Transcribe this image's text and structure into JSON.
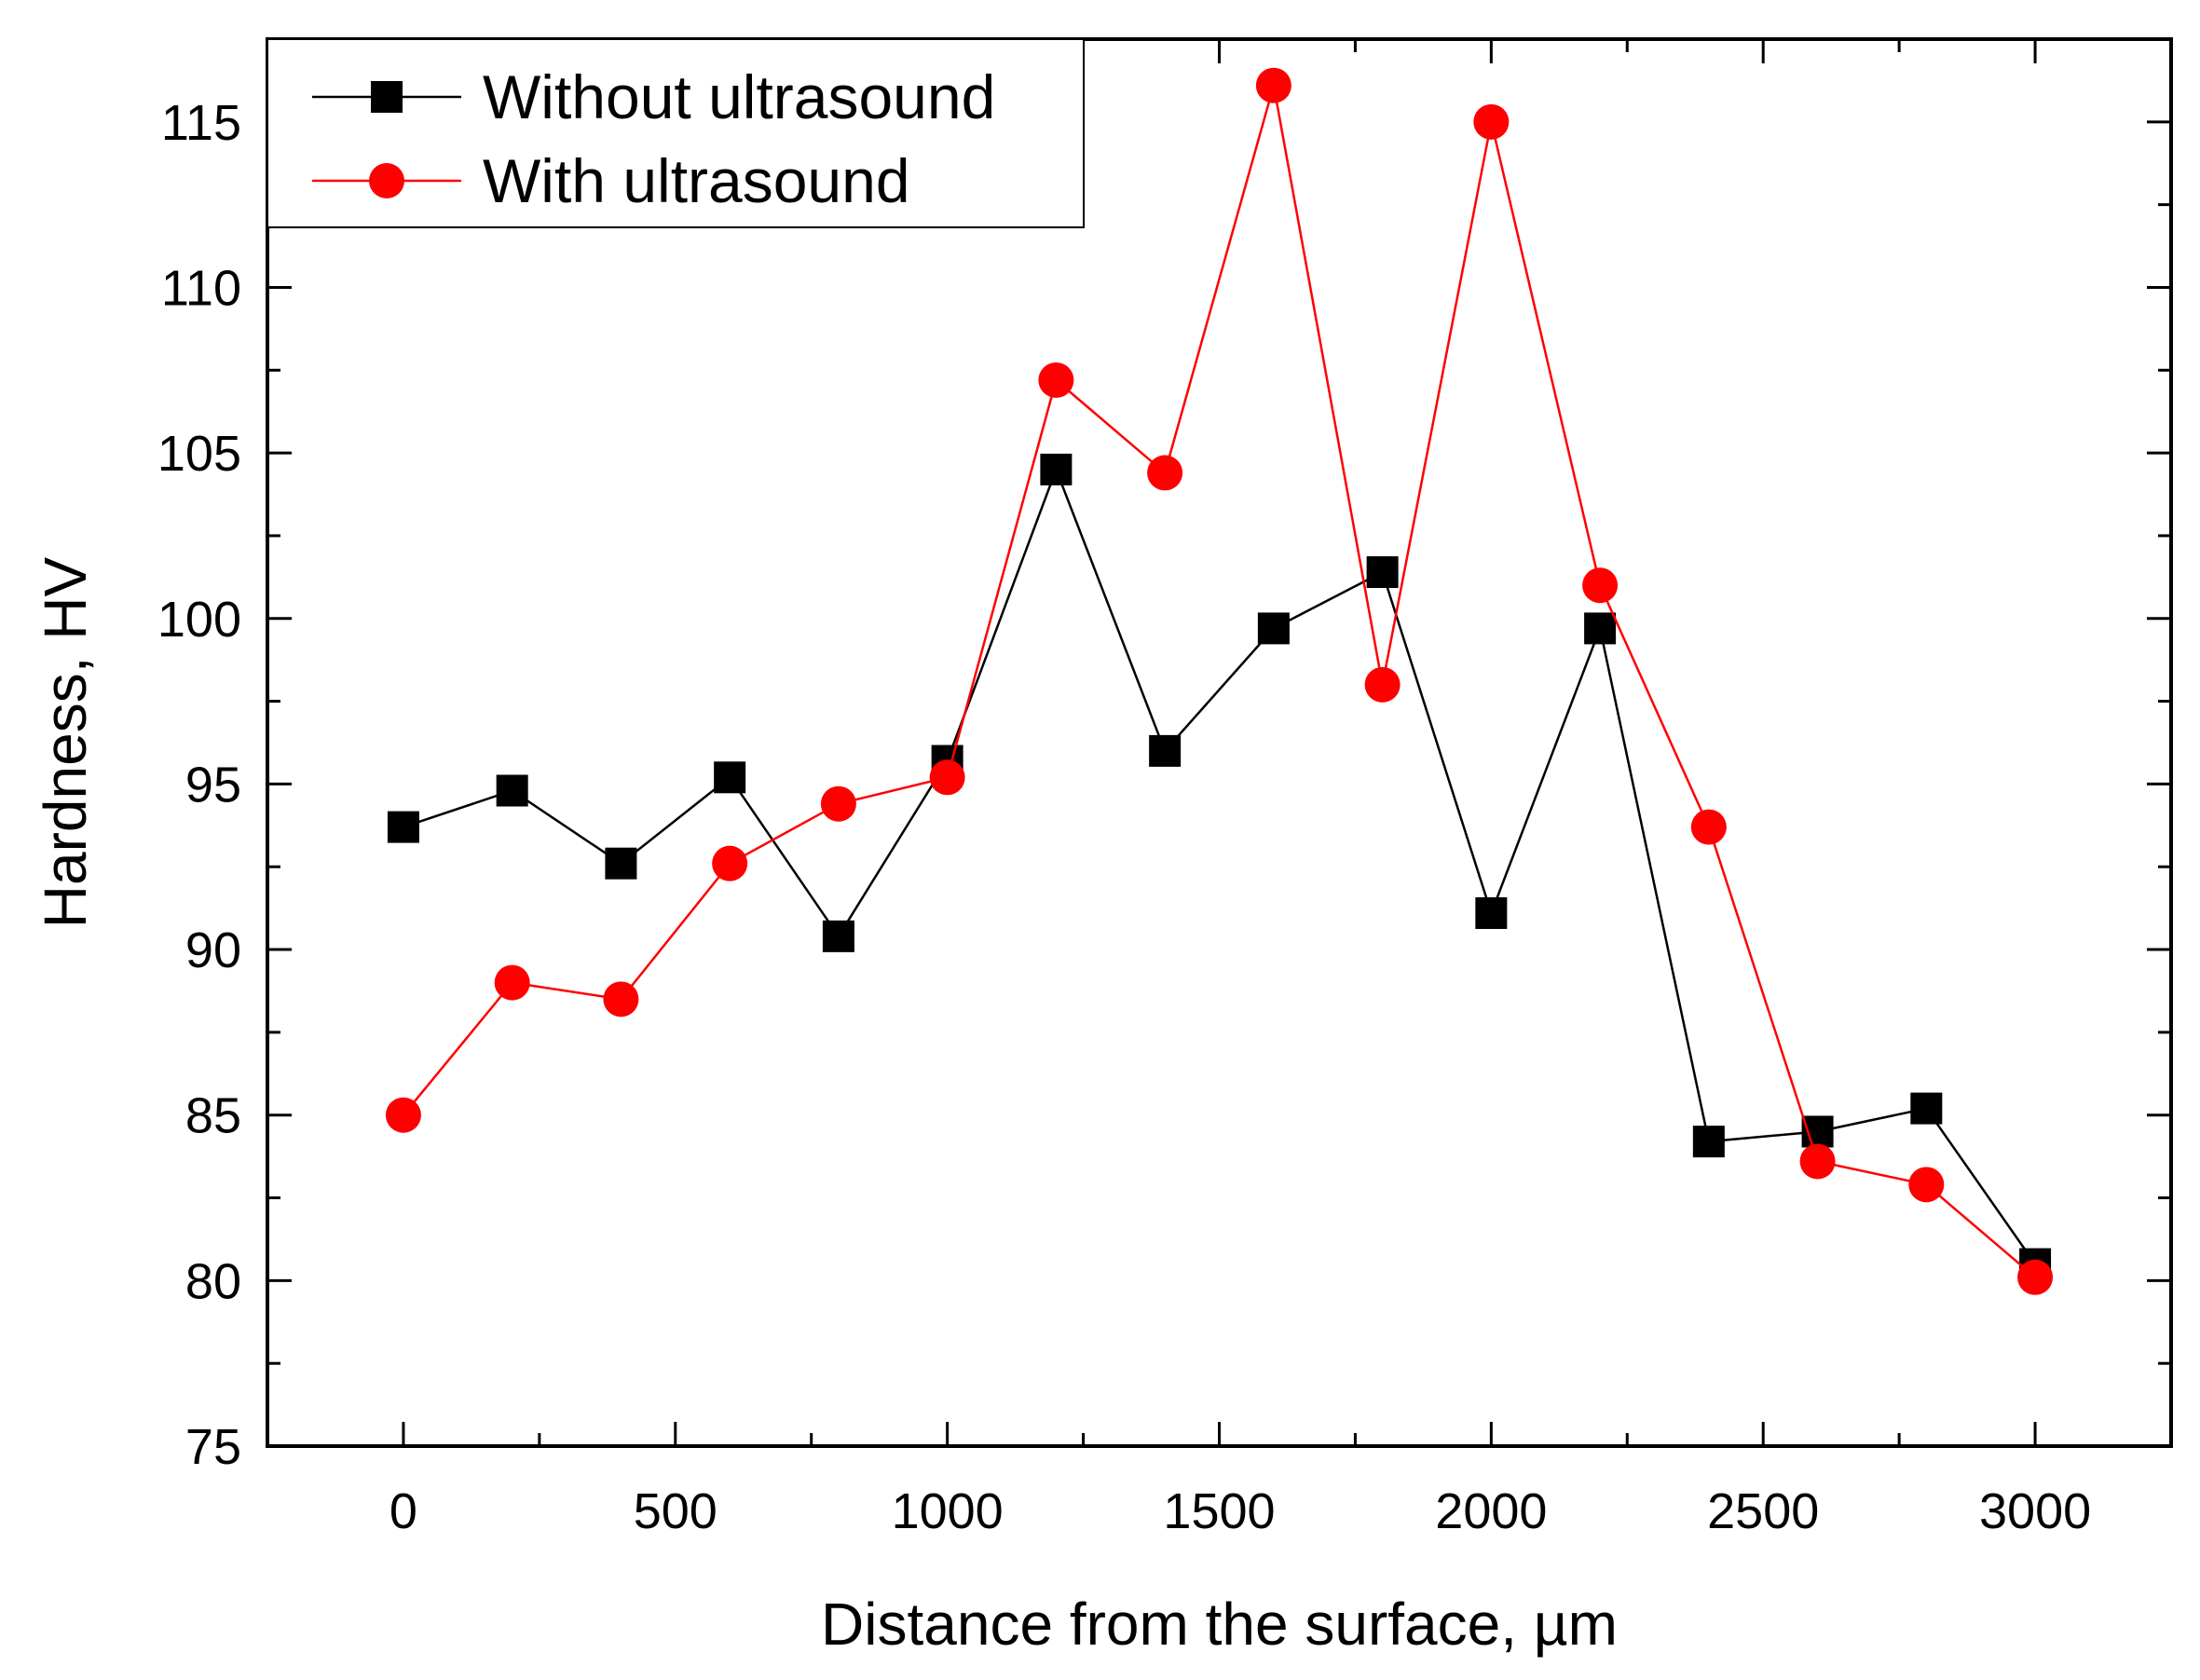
{
  "chart_data": {
    "type": "line",
    "title": "",
    "xlabel": "Distance from the surface, µm",
    "ylabel": "Hardness, HV",
    "xlim": [
      -250,
      3250
    ],
    "ylim": [
      75,
      117.5
    ],
    "x_ticks": [
      0,
      500,
      1000,
      1500,
      2000,
      2500,
      3000
    ],
    "x_tick_labels": [
      "0",
      "500",
      "1000",
      "1500",
      "2000",
      "2500",
      "3000"
    ],
    "y_ticks": [
      75,
      80,
      85,
      90,
      95,
      100,
      105,
      110,
      115
    ],
    "y_tick_labels": [
      "75",
      "80",
      "85",
      "90",
      "95",
      "100",
      "105",
      "110",
      "115"
    ],
    "x": [
      0,
      200,
      400,
      600,
      800,
      1000,
      1200,
      1400,
      1600,
      1800,
      2000,
      2200,
      2400,
      2600,
      2800,
      3000
    ],
    "legend_position": "top-left",
    "grid": false,
    "series": [
      {
        "name": "Without ultrasound",
        "color": "#000000",
        "marker": "square",
        "values": [
          93.7,
          94.8,
          92.6,
          95.2,
          90.4,
          95.7,
          104.5,
          96.0,
          99.7,
          101.4,
          91.1,
          99.7,
          84.2,
          84.5,
          85.2,
          80.5
        ]
      },
      {
        "name": "With ultrasound",
        "color": "#ff0000",
        "marker": "circle",
        "values": [
          85.0,
          89.0,
          88.5,
          92.6,
          94.4,
          95.2,
          107.2,
          104.4,
          116.1,
          98.0,
          115.0,
          101.0,
          93.7,
          83.6,
          82.9,
          80.1
        ]
      }
    ]
  }
}
